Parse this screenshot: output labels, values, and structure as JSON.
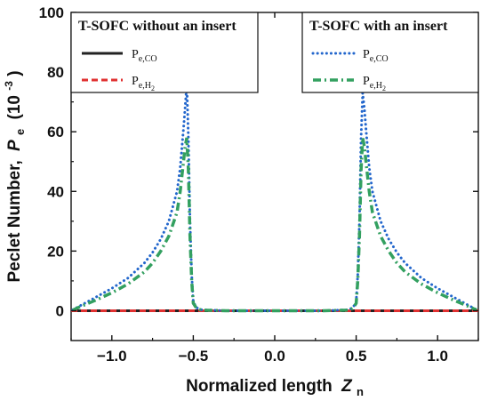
{
  "chart_data": {
    "type": "line",
    "xlabel": "Normalized length",
    "xlabel_var": "Z",
    "xlabel_sub": "n",
    "ylabel": "Peclet Number,",
    "ylabel_var": "P",
    "ylabel_sub": "e",
    "ylabel_unit": "(10",
    "ylabel_exp": "-3",
    "ylabel_close": ")",
    "xlim": [
      -1.25,
      1.25
    ],
    "ylim": [
      -10,
      100
    ],
    "xticks": [
      -1.0,
      -0.5,
      0.0,
      0.5,
      1.0
    ],
    "xtick_labels": [
      "−1.0",
      "−0.5",
      "0.0",
      "0.5",
      "1.0"
    ],
    "yticks": [
      0,
      20,
      40,
      60,
      80,
      100
    ],
    "ytick_labels": [
      "0",
      "20",
      "40",
      "60",
      "80",
      "100"
    ],
    "legends": [
      {
        "title": "T-SOFC without an insert",
        "position": "top-left",
        "entries": [
          {
            "main": "P",
            "sub": "e,CO",
            "sub2": "",
            "series": 0
          },
          {
            "main": "P",
            "sub": "e,H",
            "sub2": "2",
            "series": 1
          }
        ]
      },
      {
        "title": "T-SOFC with an insert",
        "position": "top-right",
        "entries": [
          {
            "main": "P",
            "sub": "e,CO",
            "sub2": "",
            "series": 2
          },
          {
            "main": "P",
            "sub": "e,H",
            "sub2": "2",
            "series": 3
          }
        ]
      }
    ],
    "series": [
      {
        "color": "#222222",
        "dash": "solid",
        "x": [
          -1.25,
          1.25
        ],
        "y": [
          0,
          0
        ]
      },
      {
        "color": "#e03030",
        "dash": "dashed",
        "x": [
          -1.25,
          1.25
        ],
        "y": [
          0,
          0
        ]
      },
      {
        "color": "#2266cc",
        "dash": "dotted",
        "x": [
          -1.24,
          -1.2,
          -1.1,
          -1.0,
          -0.9,
          -0.8,
          -0.75,
          -0.7,
          -0.65,
          -0.6,
          -0.58,
          -0.56,
          -0.55,
          -0.54,
          -0.53,
          -0.52,
          -0.51,
          -0.5,
          -0.48,
          -0.45,
          -0.3,
          0.0,
          0.3,
          0.45,
          0.48,
          0.5,
          0.51,
          0.52,
          0.53,
          0.54,
          0.55,
          0.56,
          0.58,
          0.6,
          0.65,
          0.7,
          0.75,
          0.8,
          0.9,
          1.0,
          1.1,
          1.2,
          1.24
        ],
        "y": [
          0.3,
          1.5,
          4.5,
          7.5,
          11,
          16,
          19.5,
          24,
          30,
          40,
          48,
          61,
          68,
          76,
          58,
          30,
          12,
          3,
          1,
          0.3,
          0,
          0,
          0,
          0.3,
          1,
          3,
          12,
          30,
          58,
          73,
          68,
          61,
          48,
          40,
          30,
          24,
          19.5,
          16,
          11,
          7.5,
          4.5,
          1.5,
          0.3
        ]
      },
      {
        "color": "#33a060",
        "dash": "dashdot",
        "x": [
          -1.24,
          -1.2,
          -1.1,
          -1.0,
          -0.9,
          -0.8,
          -0.75,
          -0.7,
          -0.65,
          -0.6,
          -0.58,
          -0.56,
          -0.55,
          -0.54,
          -0.53,
          -0.52,
          -0.51,
          -0.5,
          -0.48,
          -0.45,
          -0.3,
          0.0,
          0.3,
          0.45,
          0.48,
          0.5,
          0.51,
          0.52,
          0.53,
          0.54,
          0.55,
          0.56,
          0.58,
          0.6,
          0.65,
          0.7,
          0.75,
          0.8,
          0.9,
          1.0,
          1.1,
          1.2,
          1.24
        ],
        "y": [
          0.2,
          1.2,
          3.5,
          6,
          9,
          13,
          16,
          20,
          25,
          33,
          40,
          50,
          55,
          58,
          47,
          25,
          10,
          2.5,
          0.8,
          0.2,
          0,
          0,
          0,
          0.2,
          0.8,
          2.5,
          10,
          25,
          47,
          58,
          55,
          50,
          40,
          33,
          25,
          20,
          16,
          13,
          9,
          6,
          3.5,
          1.2,
          0.2
        ]
      }
    ],
    "grid": false
  }
}
